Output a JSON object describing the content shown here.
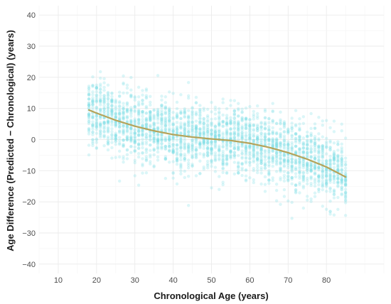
{
  "chart_data": {
    "type": "scatter",
    "xlabel": "Chronological Age (years)",
    "ylabel": "Age Difference (Predicted − Chronological) (years)",
    "xlim": [
      5,
      95
    ],
    "ylim": [
      -43,
      43
    ],
    "x_ticks": [
      10,
      20,
      30,
      40,
      50,
      60,
      70,
      80
    ],
    "y_ticks": [
      -40,
      -30,
      -20,
      -10,
      0,
      10,
      20,
      30,
      40
    ],
    "grid": true,
    "points_color": "#7fdfe6",
    "series": [
      {
        "type": "scatter",
        "point_count_per_age": 40,
        "age_range": [
          18,
          85
        ],
        "center": {
          "x": [
            18,
            20,
            25,
            30,
            35,
            40,
            45,
            50,
            55,
            60,
            65,
            70,
            75,
            80,
            85
          ],
          "y": [
            9.5,
            8.5,
            6.2,
            4.3,
            2.8,
            1.6,
            0.8,
            0.2,
            -0.3,
            -1.2,
            -2.5,
            -4.2,
            -6.3,
            -8.8,
            -12.0
          ]
        },
        "spread_sd": 5.5
      },
      {
        "type": "line",
        "color": "#b5a35a",
        "x": [
          18,
          20,
          25,
          30,
          35,
          40,
          45,
          50,
          55,
          60,
          65,
          70,
          75,
          80,
          85
        ],
        "y": [
          9.5,
          8.5,
          6.2,
          4.3,
          2.8,
          1.6,
          0.8,
          0.2,
          -0.3,
          -1.2,
          -2.5,
          -4.2,
          -6.3,
          -8.8,
          -12.0
        ]
      }
    ]
  }
}
